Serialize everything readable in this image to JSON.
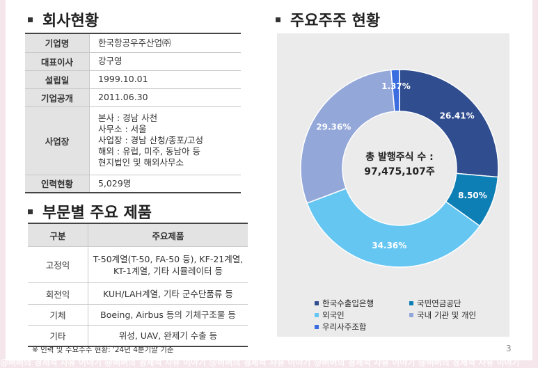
{
  "company": {
    "title": "회사현황",
    "rows": [
      {
        "key": "기업명",
        "value": [
          "한국항공우주산업㈜"
        ]
      },
      {
        "key": "대표이사",
        "value": [
          "강구영"
        ]
      },
      {
        "key": "설립일",
        "value": [
          "1999.10.01"
        ]
      },
      {
        "key": "기업공개",
        "value": [
          "2011.06.30"
        ]
      },
      {
        "key": "사업장",
        "value": [
          "본사 : 경남 사천",
          "사무소 : 서울",
          "사업장 : 경남 산청/종포/고성",
          "해외 : 유럽, 미주, 동남아 등",
          "현지법인 및 해외사무소"
        ]
      },
      {
        "key": "인력현황",
        "value": [
          "5,029명"
        ]
      }
    ]
  },
  "products": {
    "title": "부문별 주요 제품",
    "headers": [
      "구분",
      "주요제품"
    ],
    "rows": [
      {
        "category": "고정익",
        "items": [
          "T-50계열(T-50, FA-50 등), KF-21계열,",
          "KT-1계열, 기타 시뮬레이터 등"
        ]
      },
      {
        "category": "회전익",
        "items": [
          "KUH/LAH계열, 기타 군수단품류 등"
        ]
      },
      {
        "category": "기체",
        "items": [
          "Boeing, Airbus 등의 기체구조물 등"
        ]
      },
      {
        "category": "기타",
        "items": [
          "위성, UAV, 완제기 수출 등"
        ]
      }
    ]
  },
  "note": "※ 인력 및 주요주주 현황: '24년 4분기말 기준",
  "page_number": "3",
  "watermark": "@벼벼의 경제적 자유 이야기    @벼벼의 경제적 자유 이야기    @벼벼의 경제적 자유 이야기    @벼벼의 경제적 자유 이야기    @벼벼의 경제적 자유 이야기",
  "shareholders_title": "주요주주 현황",
  "chart_data": {
    "type": "pie",
    "style": "donut",
    "title": "",
    "center_label": [
      "총 발행주식 수 :",
      "97,475,107주"
    ],
    "legend_position": "bottom",
    "slices": [
      {
        "name": "한국수출입은행",
        "value": 26.41,
        "label": "26.41%",
        "color": "#2f4d8f"
      },
      {
        "name": "국민연금공단",
        "value": 8.5,
        "label": "8.50%",
        "color": "#0e7fb4"
      },
      {
        "name": "외국인",
        "value": 34.36,
        "label": "34.36%",
        "color": "#66c6f2"
      },
      {
        "name": "국내 기관 및 개인",
        "value": 29.36,
        "label": "29.36%",
        "color": "#93a7d9"
      },
      {
        "name": "우리사주조합",
        "value": 1.37,
        "label": "1.37%",
        "color": "#3b6de0"
      }
    ]
  }
}
